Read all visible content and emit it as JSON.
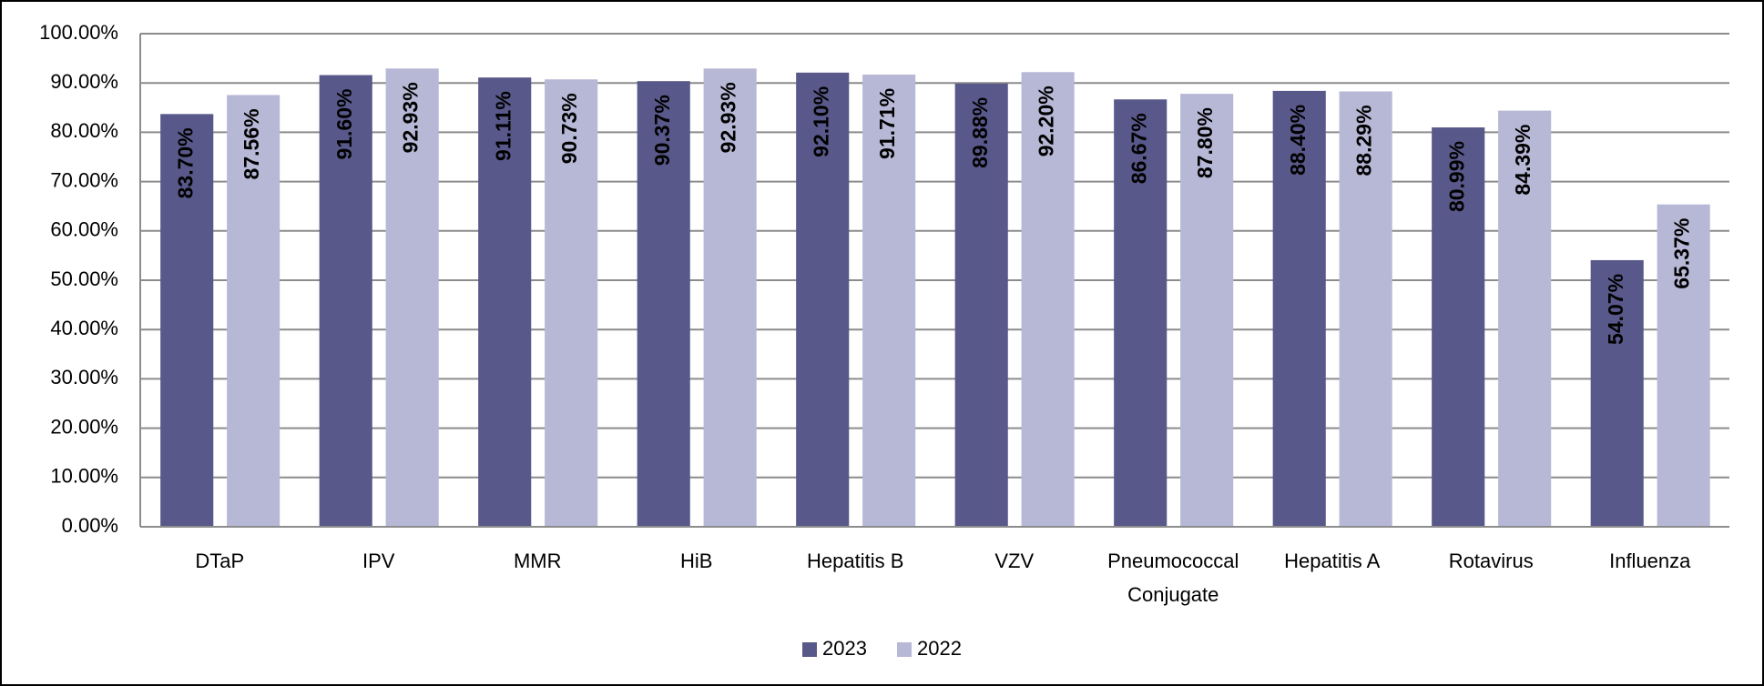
{
  "chart_data": {
    "type": "bar",
    "categories": [
      "DTaP",
      "IPV",
      "MMR",
      "HiB",
      "Hepatitis B",
      "VZV",
      "Pneumococcal Conjugate",
      "Hepatitis A",
      "Rotavirus",
      "Influenza"
    ],
    "series": [
      {
        "name": "2023",
        "color": "#58588a",
        "values": [
          83.7,
          91.6,
          91.11,
          90.37,
          92.1,
          89.88,
          86.67,
          88.4,
          80.99,
          54.07
        ],
        "value_labels": [
          "83.70%",
          "91.60%",
          "91.11%",
          "90.37%",
          "92.10%",
          "89.88%",
          "86.67%",
          "88.40%",
          "80.99%",
          "54.07%"
        ]
      },
      {
        "name": "2022",
        "color": "#b7b8d6",
        "values": [
          87.56,
          92.93,
          90.73,
          92.93,
          91.71,
          92.2,
          87.8,
          88.29,
          84.39,
          65.37
        ],
        "value_labels": [
          "87.56%",
          "92.93%",
          "90.73%",
          "92.93%",
          "91.71%",
          "92.20%",
          "87.80%",
          "88.29%",
          "84.39%",
          "65.37%"
        ]
      }
    ],
    "ylim": [
      0,
      100
    ],
    "yticks": [
      {
        "value": 0,
        "label": "0.00%"
      },
      {
        "value": 10,
        "label": "10.00%"
      },
      {
        "value": 20,
        "label": "20.00%"
      },
      {
        "value": 30,
        "label": "30.00%"
      },
      {
        "value": 40,
        "label": "40.00%"
      },
      {
        "value": 50,
        "label": "50.00%"
      },
      {
        "value": 60,
        "label": "60.00%"
      },
      {
        "value": 70,
        "label": "70.00%"
      },
      {
        "value": 80,
        "label": "80.00%"
      },
      {
        "value": 90,
        "label": "90.00%"
      },
      {
        "value": 100,
        "label": "100.00%"
      }
    ],
    "grid": true,
    "legend": "bottom"
  }
}
